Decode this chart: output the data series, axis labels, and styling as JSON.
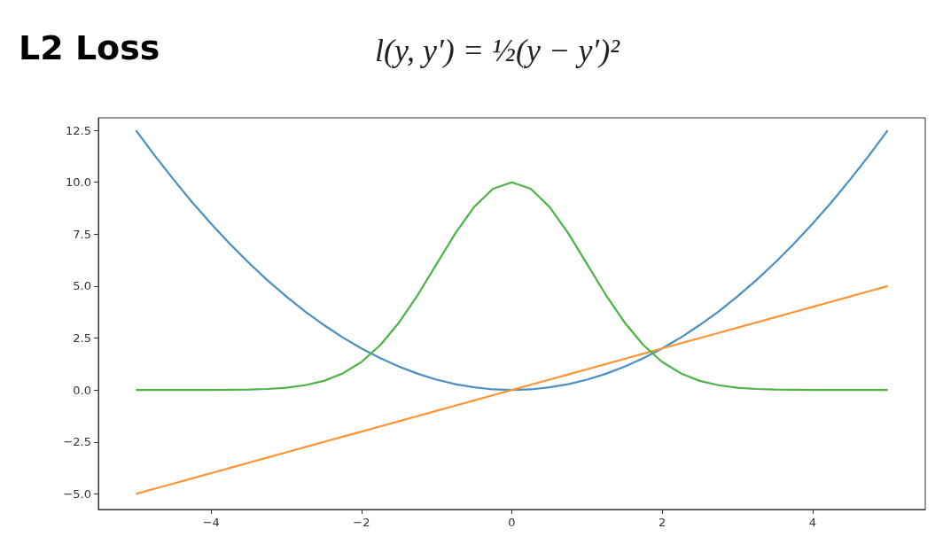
{
  "chart_data": {
    "type": "line",
    "title": "L2 Loss",
    "subtitle": "l(y, y′) = ½(y − y′)²",
    "x": [
      -5,
      -4.75,
      -4.5,
      -4.25,
      -4,
      -3.75,
      -3.5,
      -3.25,
      -3,
      -2.75,
      -2.5,
      -2.25,
      -2,
      -1.75,
      -1.5,
      -1.25,
      -1,
      -0.75,
      -0.5,
      -0.25,
      0,
      0.25,
      0.5,
      0.75,
      1,
      1.25,
      1.5,
      1.75,
      2,
      2.25,
      2.5,
      2.75,
      3,
      3.25,
      3.5,
      3.75,
      4,
      4.25,
      4.5,
      4.75,
      5
    ],
    "series": [
      {
        "color": "#4a8fc4",
        "values": [
          12.5,
          11.28,
          10.13,
          9.03,
          8,
          7.03,
          6.13,
          5.28,
          4.5,
          3.78,
          3.13,
          2.53,
          2,
          1.53,
          1.13,
          0.78,
          0.5,
          0.28,
          0.13,
          0.03,
          0,
          0.03,
          0.13,
          0.28,
          0.5,
          0.78,
          1.13,
          1.53,
          2,
          2.53,
          3.13,
          3.78,
          4.5,
          5.28,
          6.13,
          7.03,
          8,
          9.03,
          10.13,
          11.28,
          12.5
        ]
      },
      {
        "color": "#ff9433",
        "values": [
          -5,
          -4.75,
          -4.5,
          -4.25,
          -4,
          -3.75,
          -3.5,
          -3.25,
          -3,
          -2.75,
          -2.5,
          -2.25,
          -2,
          -1.75,
          -1.5,
          -1.25,
          -1,
          -0.75,
          -0.5,
          -0.25,
          0,
          0.25,
          0.5,
          0.75,
          1,
          1.25,
          1.5,
          1.75,
          2,
          2.25,
          2.5,
          2.75,
          3,
          3.25,
          3.5,
          3.75,
          4,
          4.25,
          4.5,
          4.75,
          5
        ]
      },
      {
        "color": "#4db346",
        "values": [
          0,
          0,
          0,
          0,
          0,
          0.01,
          0.02,
          0.05,
          0.11,
          0.23,
          0.44,
          0.8,
          1.35,
          2.16,
          3.25,
          4.58,
          6.07,
          7.55,
          8.82,
          9.69,
          10,
          9.69,
          8.82,
          7.55,
          6.07,
          4.58,
          3.25,
          2.16,
          1.35,
          0.8,
          0.44,
          0.23,
          0.11,
          0.05,
          0.02,
          0.01,
          0,
          0,
          0,
          0,
          0
        ]
      }
    ],
    "xlim": [
      -5.5,
      5.5
    ],
    "xticks": [
      {
        "value": -4,
        "label": "−4"
      },
      {
        "value": -2,
        "label": "−2"
      },
      0,
      2,
      4
    ],
    "ylim": [
      -5.75,
      13.1
    ],
    "yticks": [
      {
        "value": -5,
        "label": "−5.0"
      },
      {
        "value": -2.5,
        "label": "−2.5"
      },
      {
        "value": 0,
        "label": "0.0"
      },
      2.5,
      {
        "value": 5,
        "label": "5.0"
      },
      7.5,
      {
        "value": 10,
        "label": "10.0"
      },
      12.5
    ],
    "marker": "none"
  }
}
